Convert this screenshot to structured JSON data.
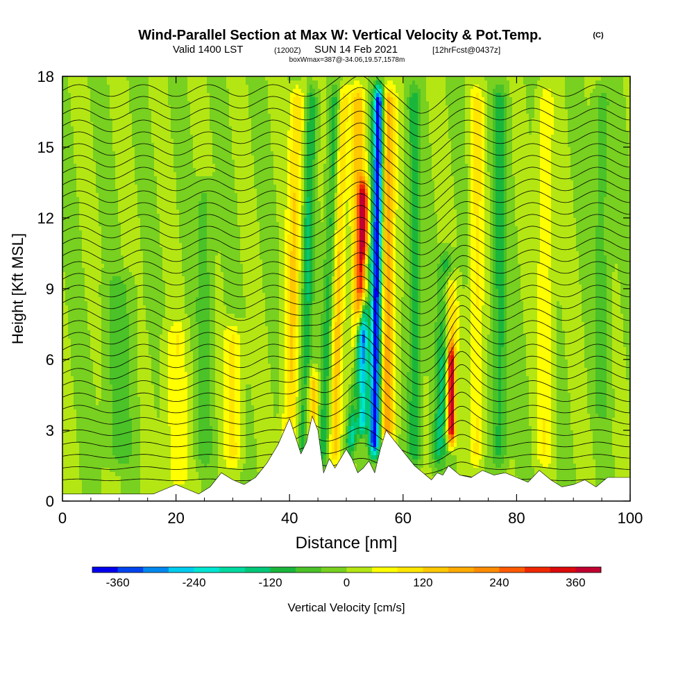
{
  "title": "Wind-Parallel Section at Max W: Vertical Velocity & Pot.Temp.",
  "copyright": "(C)",
  "subtitle": {
    "valid": "Valid 1400 LST",
    "utc": "(1200Z)",
    "date": "SUN 14 Feb 2021",
    "forecast": "[12hrFcst@0437z]"
  },
  "box_note": "boxWmax=387@-34.06,19.57,1578m",
  "chart_data": {
    "type": "heatmap",
    "title": "Wind-Parallel Section at Max W: Vertical Velocity & Pot.Temp.",
    "xlabel": "Distance [nm]",
    "ylabel": "Height [Kft MSL]",
    "xlim": [
      0,
      100
    ],
    "ylim": [
      0,
      18
    ],
    "xticks": [
      0,
      20,
      40,
      60,
      80,
      100
    ],
    "yticks": [
      0,
      3,
      6,
      9,
      12,
      15,
      18
    ],
    "colorbar": {
      "label": "Vertical Velocity [cm/s]",
      "ticks": [
        -360,
        -240,
        -120,
        0,
        120,
        240,
        360
      ],
      "levels": [
        -400,
        -360,
        -320,
        -280,
        -240,
        -200,
        -160,
        -120,
        -80,
        -40,
        0,
        40,
        80,
        120,
        160,
        200,
        240,
        280,
        320,
        360,
        400
      ],
      "colors": [
        "#0000ee",
        "#0044ee",
        "#0088ee",
        "#00ccee",
        "#00e6d2",
        "#00d9a0",
        "#00c878",
        "#1ab63c",
        "#4ac228",
        "#78d020",
        "#b4e614",
        "#ffff00",
        "#ffe600",
        "#ffc800",
        "#ffaa00",
        "#ff8c00",
        "#ff5a00",
        "#f02800",
        "#dc0a0a",
        "#c00030"
      ]
    },
    "terrain": {
      "x": [
        0,
        16,
        18,
        20,
        22,
        24,
        26,
        28,
        30,
        32,
        34,
        36,
        38,
        40,
        42,
        43,
        44,
        45,
        46,
        47,
        48,
        49,
        50,
        51,
        52,
        53,
        54,
        55,
        56,
        57,
        58,
        59,
        60,
        61,
        62,
        63,
        64,
        65,
        66,
        67,
        68,
        70,
        72,
        74,
        76,
        78,
        80,
        82,
        84,
        86,
        88,
        90,
        92,
        94,
        96,
        98,
        100
      ],
      "height_kft": [
        0.3,
        0.3,
        0.5,
        0.7,
        0.5,
        0.3,
        0.6,
        1.2,
        0.9,
        0.7,
        1.0,
        1.6,
        2.4,
        3.5,
        2.0,
        2.5,
        3.6,
        3.0,
        1.2,
        1.8,
        1.4,
        1.8,
        2.2,
        1.8,
        1.2,
        1.4,
        1.7,
        1.2,
        2.2,
        3.0,
        2.7,
        2.4,
        2.1,
        1.8,
        1.5,
        1.3,
        1.1,
        0.9,
        1.2,
        1.1,
        1.5,
        1.1,
        1.0,
        1.3,
        1.1,
        1.2,
        1.0,
        0.8,
        1.3,
        0.9,
        0.6,
        0.7,
        0.9,
        0.6,
        1.0,
        1.0,
        1.0
      ]
    },
    "updraft_cores": [
      {
        "x": 52.5,
        "height_kft": 11.0,
        "w_cms": 330
      },
      {
        "x": 68.5,
        "height_kft": 4.5,
        "w_cms": 387
      }
    ],
    "downdraft_cores": [
      {
        "x": 55.0,
        "height_kft": 14.5,
        "w_cms": -380
      },
      {
        "x": 51.0,
        "height_kft": 4.0,
        "w_cms": -200
      }
    ]
  }
}
